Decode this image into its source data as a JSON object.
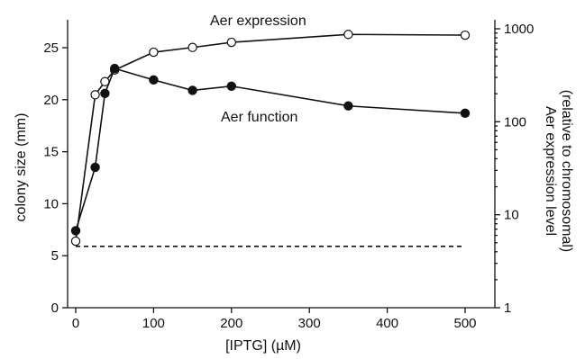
{
  "chart_data": {
    "type": "line",
    "xlabel": "[IPTG] (µM)",
    "ylabel": "colony size (mm)",
    "y2label_line1": "Aer expression level",
    "y2label_line2": "(relative to chromosomal)",
    "xlim": [
      0,
      500
    ],
    "ylim": [
      0,
      28
    ],
    "y2lim": [
      1,
      1000
    ],
    "y2scale": "log",
    "x_ticks": [
      0,
      100,
      200,
      300,
      400,
      500
    ],
    "x_tick_labels": [
      "0",
      "100",
      "200",
      "300",
      "400",
      "500"
    ],
    "y_ticks": [
      0,
      5,
      10,
      15,
      20,
      25
    ],
    "y_tick_labels": [
      "0",
      "5",
      "10",
      "15",
      "20",
      "25"
    ],
    "y2_ticks": [
      1,
      10,
      100,
      1000
    ],
    "y2_tick_labels": [
      "1",
      "10",
      "100",
      "1000"
    ],
    "series": [
      {
        "name": "Aer expression",
        "axis": "right",
        "marker": "open-circle",
        "x": [
          0,
          25,
          37.5,
          50,
          100,
          150,
          200,
          350,
          500
        ],
        "y": [
          5.2,
          195,
          270,
          360,
          560,
          630,
          715,
          870,
          855
        ]
      },
      {
        "name": "Aer function",
        "axis": "left",
        "marker": "filled-circle",
        "x": [
          0,
          25,
          37.5,
          50,
          100,
          150,
          200,
          350,
          500
        ],
        "y": [
          7.4,
          13.5,
          20.6,
          23.0,
          21.9,
          20.9,
          21.3,
          19.4,
          18.7
        ]
      }
    ],
    "reference_line": {
      "style": "dashed",
      "axis": "left",
      "y": 5.9,
      "x_range": [
        0,
        500
      ]
    },
    "annotations": [
      "Aer expression",
      "Aer function"
    ],
    "grid": false,
    "legend": "none"
  }
}
